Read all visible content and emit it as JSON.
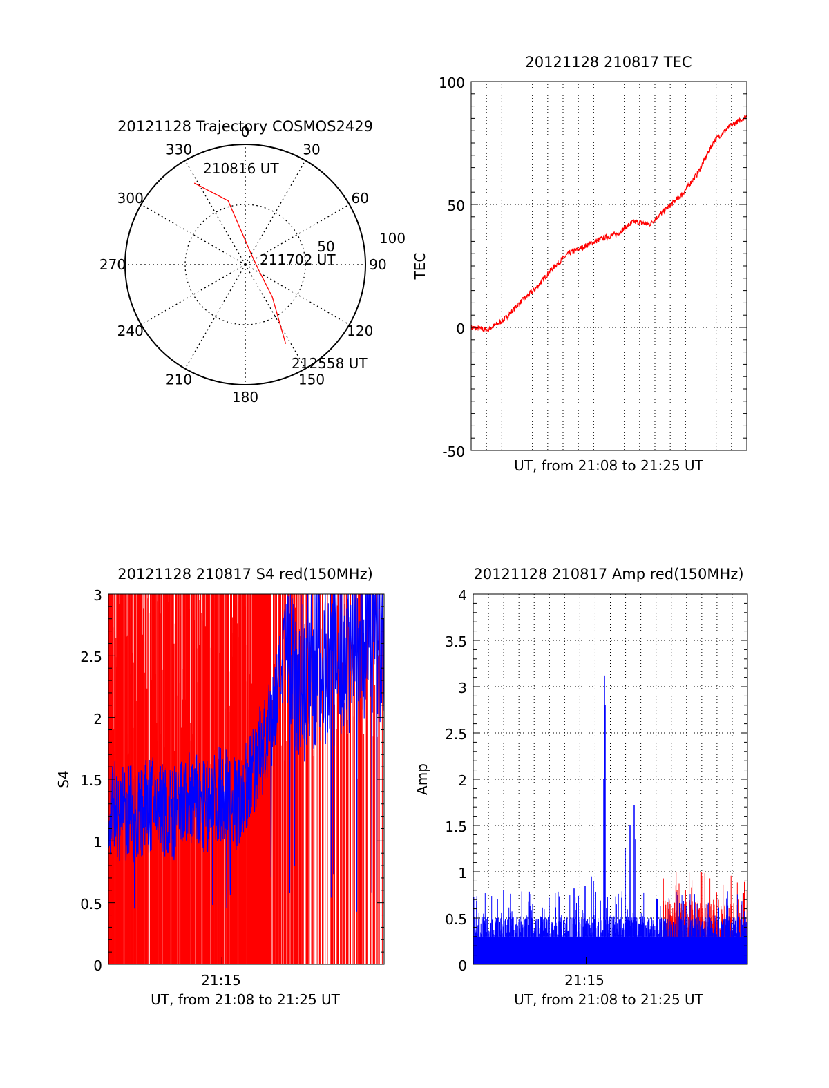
{
  "chart_data": [
    {
      "type": "polar",
      "title": "20121128 Trajectory COSMOS2429",
      "angle_ticks": [
        "0",
        "30",
        "60",
        "90",
        "120",
        "150",
        "180",
        "210",
        "240",
        "270",
        "300",
        "330"
      ],
      "radial_ticks": [
        "50",
        "100"
      ],
      "rlim": [
        0,
        100
      ],
      "grid": true,
      "track": {
        "color": "#ff0000",
        "points": [
          {
            "az": 328,
            "r": 80,
            "label": "210816 UT"
          },
          {
            "az": 345,
            "r": 55
          },
          {
            "az": 30,
            "r": 10
          },
          {
            "az": 112,
            "r": 12,
            "label": "211702 UT"
          },
          {
            "az": 140,
            "r": 35
          },
          {
            "az": 153,
            "r": 74,
            "label": "212558 UT"
          }
        ]
      }
    },
    {
      "type": "line",
      "title": "20121128 210817 TEC",
      "xlabel": "UT, from 21:08 to 21:25 UT",
      "ylabel": "TEC",
      "xlim": [
        "21:08",
        "21:25"
      ],
      "ylim": [
        -50,
        100
      ],
      "yticks": [
        "100",
        "50",
        "0",
        "-50"
      ],
      "grid": true,
      "series": [
        {
          "color": "#ff0000",
          "x": [
            "21:08",
            "21:09",
            "21:10",
            "21:11",
            "21:12",
            "21:13",
            "21:14",
            "21:15",
            "21:16",
            "21:17",
            "21:18",
            "21:19",
            "21:20",
            "21:21",
            "21:22",
            "21:23",
            "21:24",
            "21:25"
          ],
          "y": [
            0,
            -1,
            3,
            10,
            16,
            24,
            30,
            33,
            36,
            38,
            43,
            42,
            48,
            54,
            63,
            76,
            82,
            86
          ]
        }
      ]
    },
    {
      "type": "line",
      "title": "20121128 210817 S4 red(150MHz)",
      "xlabel": "UT, from 21:08 to 21:25 UT",
      "ylabel": "S4",
      "xlim": [
        "21:08",
        "21:25"
      ],
      "xticks": [
        "21:15"
      ],
      "ylim": [
        0,
        3
      ],
      "yticks": [
        "3",
        "2.5",
        "2",
        "1.5",
        "1",
        "0.5",
        "0"
      ],
      "grid": false,
      "series": [
        {
          "color": "#ff0000",
          "note_values": "dense spikes 0–3"
        },
        {
          "color": "#0000ff",
          "x": [
            "21:08",
            "21:09",
            "21:10",
            "21:11",
            "21:12",
            "21:13",
            "21:14",
            "21:15",
            "21:16",
            "21:17",
            "21:18",
            "21:19",
            "21:20",
            "21:21",
            "21:22",
            "21:23",
            "21:24",
            "21:25"
          ],
          "y": [
            1.3,
            1.2,
            1.25,
            1.3,
            1.2,
            1.35,
            1.25,
            1.4,
            1.3,
            1.6,
            1.9,
            2.6,
            2.3,
            2.5,
            2.4,
            2.6,
            2.7,
            2.6
          ]
        }
      ]
    },
    {
      "type": "line",
      "title": "20121128 210817 Amp red(150MHz)",
      "xlabel": "UT, from 21:08 to 21:25 UT",
      "ylabel": "Amp",
      "xlim": [
        "21:08",
        "21:25"
      ],
      "xticks": [
        "21:15"
      ],
      "ylim": [
        0,
        4
      ],
      "yticks": [
        "4",
        "3.5",
        "3",
        "2.5",
        "2",
        "1.5",
        "1",
        "0.5",
        "0"
      ],
      "grid": true,
      "series": [
        {
          "color": "#ff0000",
          "peak": 1.0
        },
        {
          "color": "#0000ff",
          "peak": 3.12,
          "baseline": 0.4
        }
      ]
    }
  ]
}
